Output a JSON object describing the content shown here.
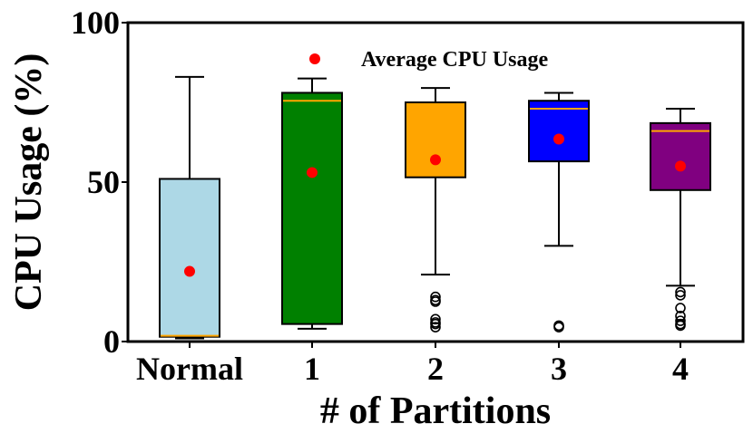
{
  "chart_data": {
    "type": "box",
    "title": "",
    "xlabel": "# of Partitions",
    "ylabel": "CPU Usage (%)",
    "ylim": [
      0,
      100
    ],
    "yticks": [
      0,
      50,
      100
    ],
    "grid": false,
    "legend": {
      "label": "Average CPU Usage",
      "position": "top-center",
      "marker_color": "#ff0000"
    },
    "median_color": "#ffa500",
    "categories": [
      "Normal",
      "1",
      "2",
      "3",
      "4"
    ],
    "boxes": [
      {
        "category": "Normal",
        "color": "#add8e6",
        "whisker_low": 1,
        "q1": 1.5,
        "median": 1.8,
        "q3": 51,
        "whisker_high": 83,
        "mean": 22,
        "outliers": []
      },
      {
        "category": "1",
        "color": "#008000",
        "whisker_low": 4,
        "q1": 5.5,
        "median": 75.5,
        "q3": 78,
        "whisker_high": 82.5,
        "mean": 53,
        "outliers": []
      },
      {
        "category": "2",
        "color": "#ffa500",
        "whisker_low": 21,
        "q1": 51.5,
        "median": 72,
        "q3": 75,
        "whisker_high": 79.5,
        "mean": 57,
        "outliers": [
          14,
          13,
          12.5,
          7,
          6,
          5.5,
          4.5
        ]
      },
      {
        "category": "3",
        "color": "#0000ff",
        "whisker_low": 30,
        "q1": 56.5,
        "median": 73,
        "q3": 75.5,
        "whisker_high": 78,
        "mean": 63.5,
        "outliers": [
          5,
          4.5
        ]
      },
      {
        "category": "4",
        "color": "#800080",
        "whisker_low": 17.5,
        "q1": 47.5,
        "median": 66,
        "q3": 68.5,
        "whisker_high": 73,
        "mean": 55,
        "outliers": [
          15.5,
          14.5,
          10.5,
          8,
          6.5,
          5.5,
          5
        ]
      }
    ]
  }
}
